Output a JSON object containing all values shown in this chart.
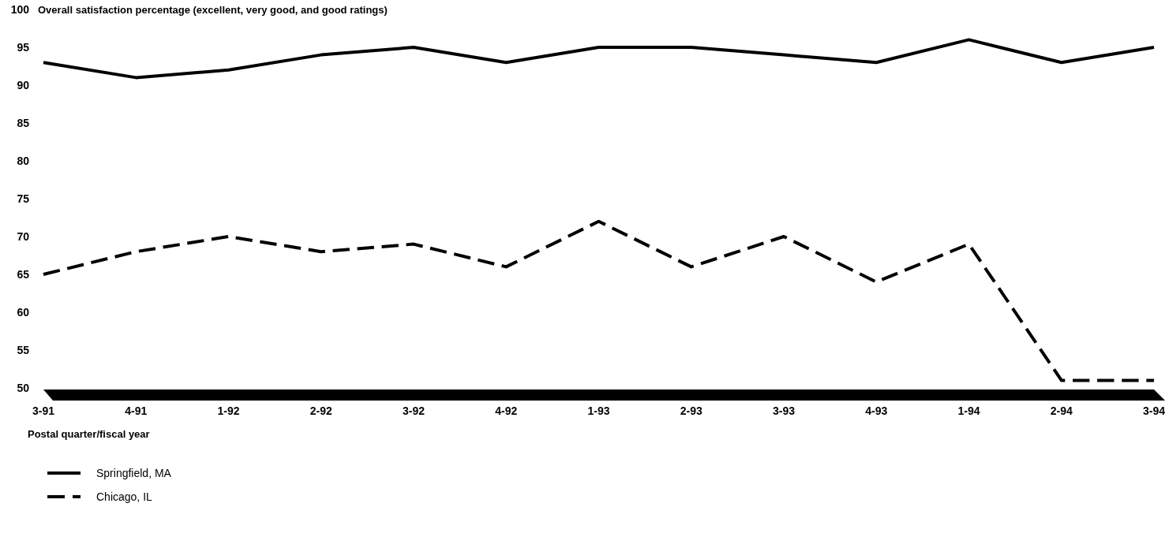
{
  "chart_data": {
    "type": "line",
    "title": "Overall satisfaction percentage (excellent, very good, and good ratings)",
    "xlabel": "Postal quarter/fiscal year",
    "categories": [
      "3-91",
      "4-91",
      "1-92",
      "2-92",
      "3-92",
      "4-92",
      "1-93",
      "2-93",
      "3-93",
      "4-93",
      "1-94",
      "2-94",
      "3-94"
    ],
    "ylim": [
      50,
      100
    ],
    "yticks": [
      50,
      55,
      60,
      65,
      70,
      75,
      80,
      85,
      90,
      95,
      100
    ],
    "legend": "bottom left",
    "series": [
      {
        "name": "Springfield, MA",
        "color": "#000000",
        "line_style": "solid",
        "values": [
          93,
          91,
          92,
          94,
          95,
          93,
          95,
          95,
          94,
          93,
          96,
          93,
          95
        ]
      },
      {
        "name": "Chicago, IL",
        "color": "#000000",
        "line_style": "dashed",
        "values": [
          65,
          68,
          70,
          68,
          69,
          66,
          72,
          66,
          70,
          64,
          69,
          51,
          51
        ]
      }
    ]
  }
}
